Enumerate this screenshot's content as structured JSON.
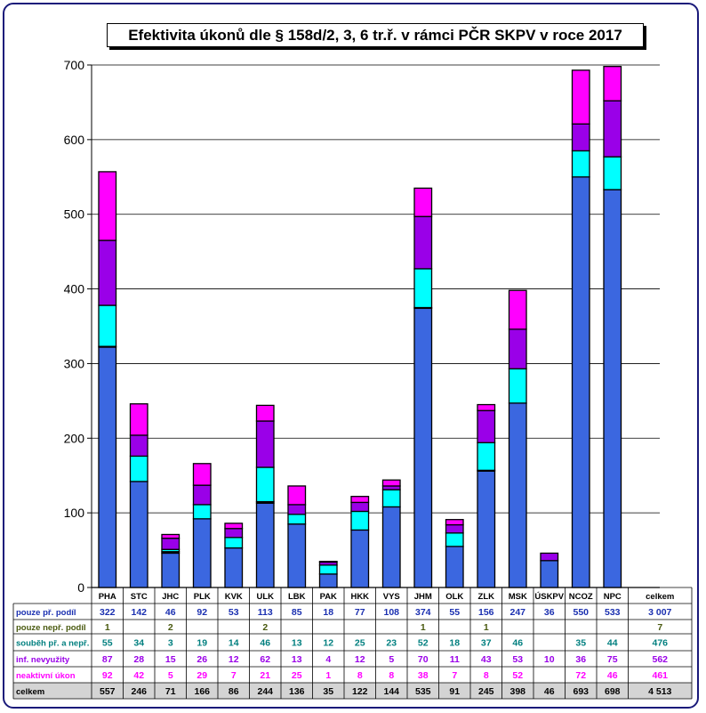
{
  "chart_data": {
    "type": "bar",
    "stacked": true,
    "title": "Efektivita úkonů dle § 158d/2, 3, 6 tr.ř. v rámci PČR SKPV v roce 2017",
    "categories": [
      "PHA",
      "STC",
      "JHC",
      "PLK",
      "KVK",
      "ULK",
      "LBK",
      "PAK",
      "HKK",
      "VYS",
      "JHM",
      "OLK",
      "ZLK",
      "MSK",
      "ÚSKPV",
      "NCOZ",
      "NPC"
    ],
    "total_label": "celkem",
    "ylim": [
      0,
      700
    ],
    "yticks": [
      0,
      100,
      200,
      300,
      400,
      500,
      600,
      700
    ],
    "grid": true,
    "series": [
      {
        "name": "pouze př. podíl",
        "color": "#3b67e0",
        "text_color": "#1a2fb0",
        "values": [
          "322",
          "142",
          "46",
          "92",
          "53",
          "113",
          "85",
          "18",
          "77",
          "108",
          "374",
          "55",
          "156",
          "247",
          "36",
          "550",
          "533"
        ],
        "total": "3 007"
      },
      {
        "name": "pouze nepř. podíl",
        "color": "#000000",
        "text_color": "#4a5a10",
        "values": [
          "1",
          "",
          "2",
          "",
          "",
          "2",
          "",
          "",
          "",
          "",
          "1",
          "",
          "1",
          "",
          "",
          "",
          ""
        ],
        "total": "7"
      },
      {
        "name": "souběh př. a nepř.",
        "color": "#00ffff",
        "text_color": "#007f7f",
        "values": [
          "55",
          "34",
          "3",
          "19",
          "14",
          "46",
          "13",
          "12",
          "25",
          "23",
          "52",
          "18",
          "37",
          "46",
          "",
          "35",
          "44"
        ],
        "total": "476"
      },
      {
        "name": "inf. nevyužity",
        "color": "#9a00e8",
        "text_color": "#9a00e8",
        "values": [
          "87",
          "28",
          "15",
          "26",
          "12",
          "62",
          "13",
          "4",
          "12",
          "5",
          "70",
          "11",
          "43",
          "53",
          "10",
          "36",
          "75"
        ],
        "total": "562"
      },
      {
        "name": "neaktivní úkon",
        "color": "#ff00ff",
        "text_color": "#ff00ff",
        "values": [
          "92",
          "42",
          "5",
          "29",
          "7",
          "21",
          "25",
          "1",
          "8",
          "8",
          "38",
          "7",
          "8",
          "52",
          "",
          "72",
          "46"
        ],
        "total": "461"
      }
    ],
    "totals_row": {
      "name": "celkem",
      "values": [
        "557",
        "246",
        "71",
        "166",
        "86",
        "244",
        "136",
        "35",
        "122",
        "144",
        "535",
        "91",
        "245",
        "398",
        "46",
        "693",
        "698"
      ],
      "total": "4 513"
    }
  }
}
